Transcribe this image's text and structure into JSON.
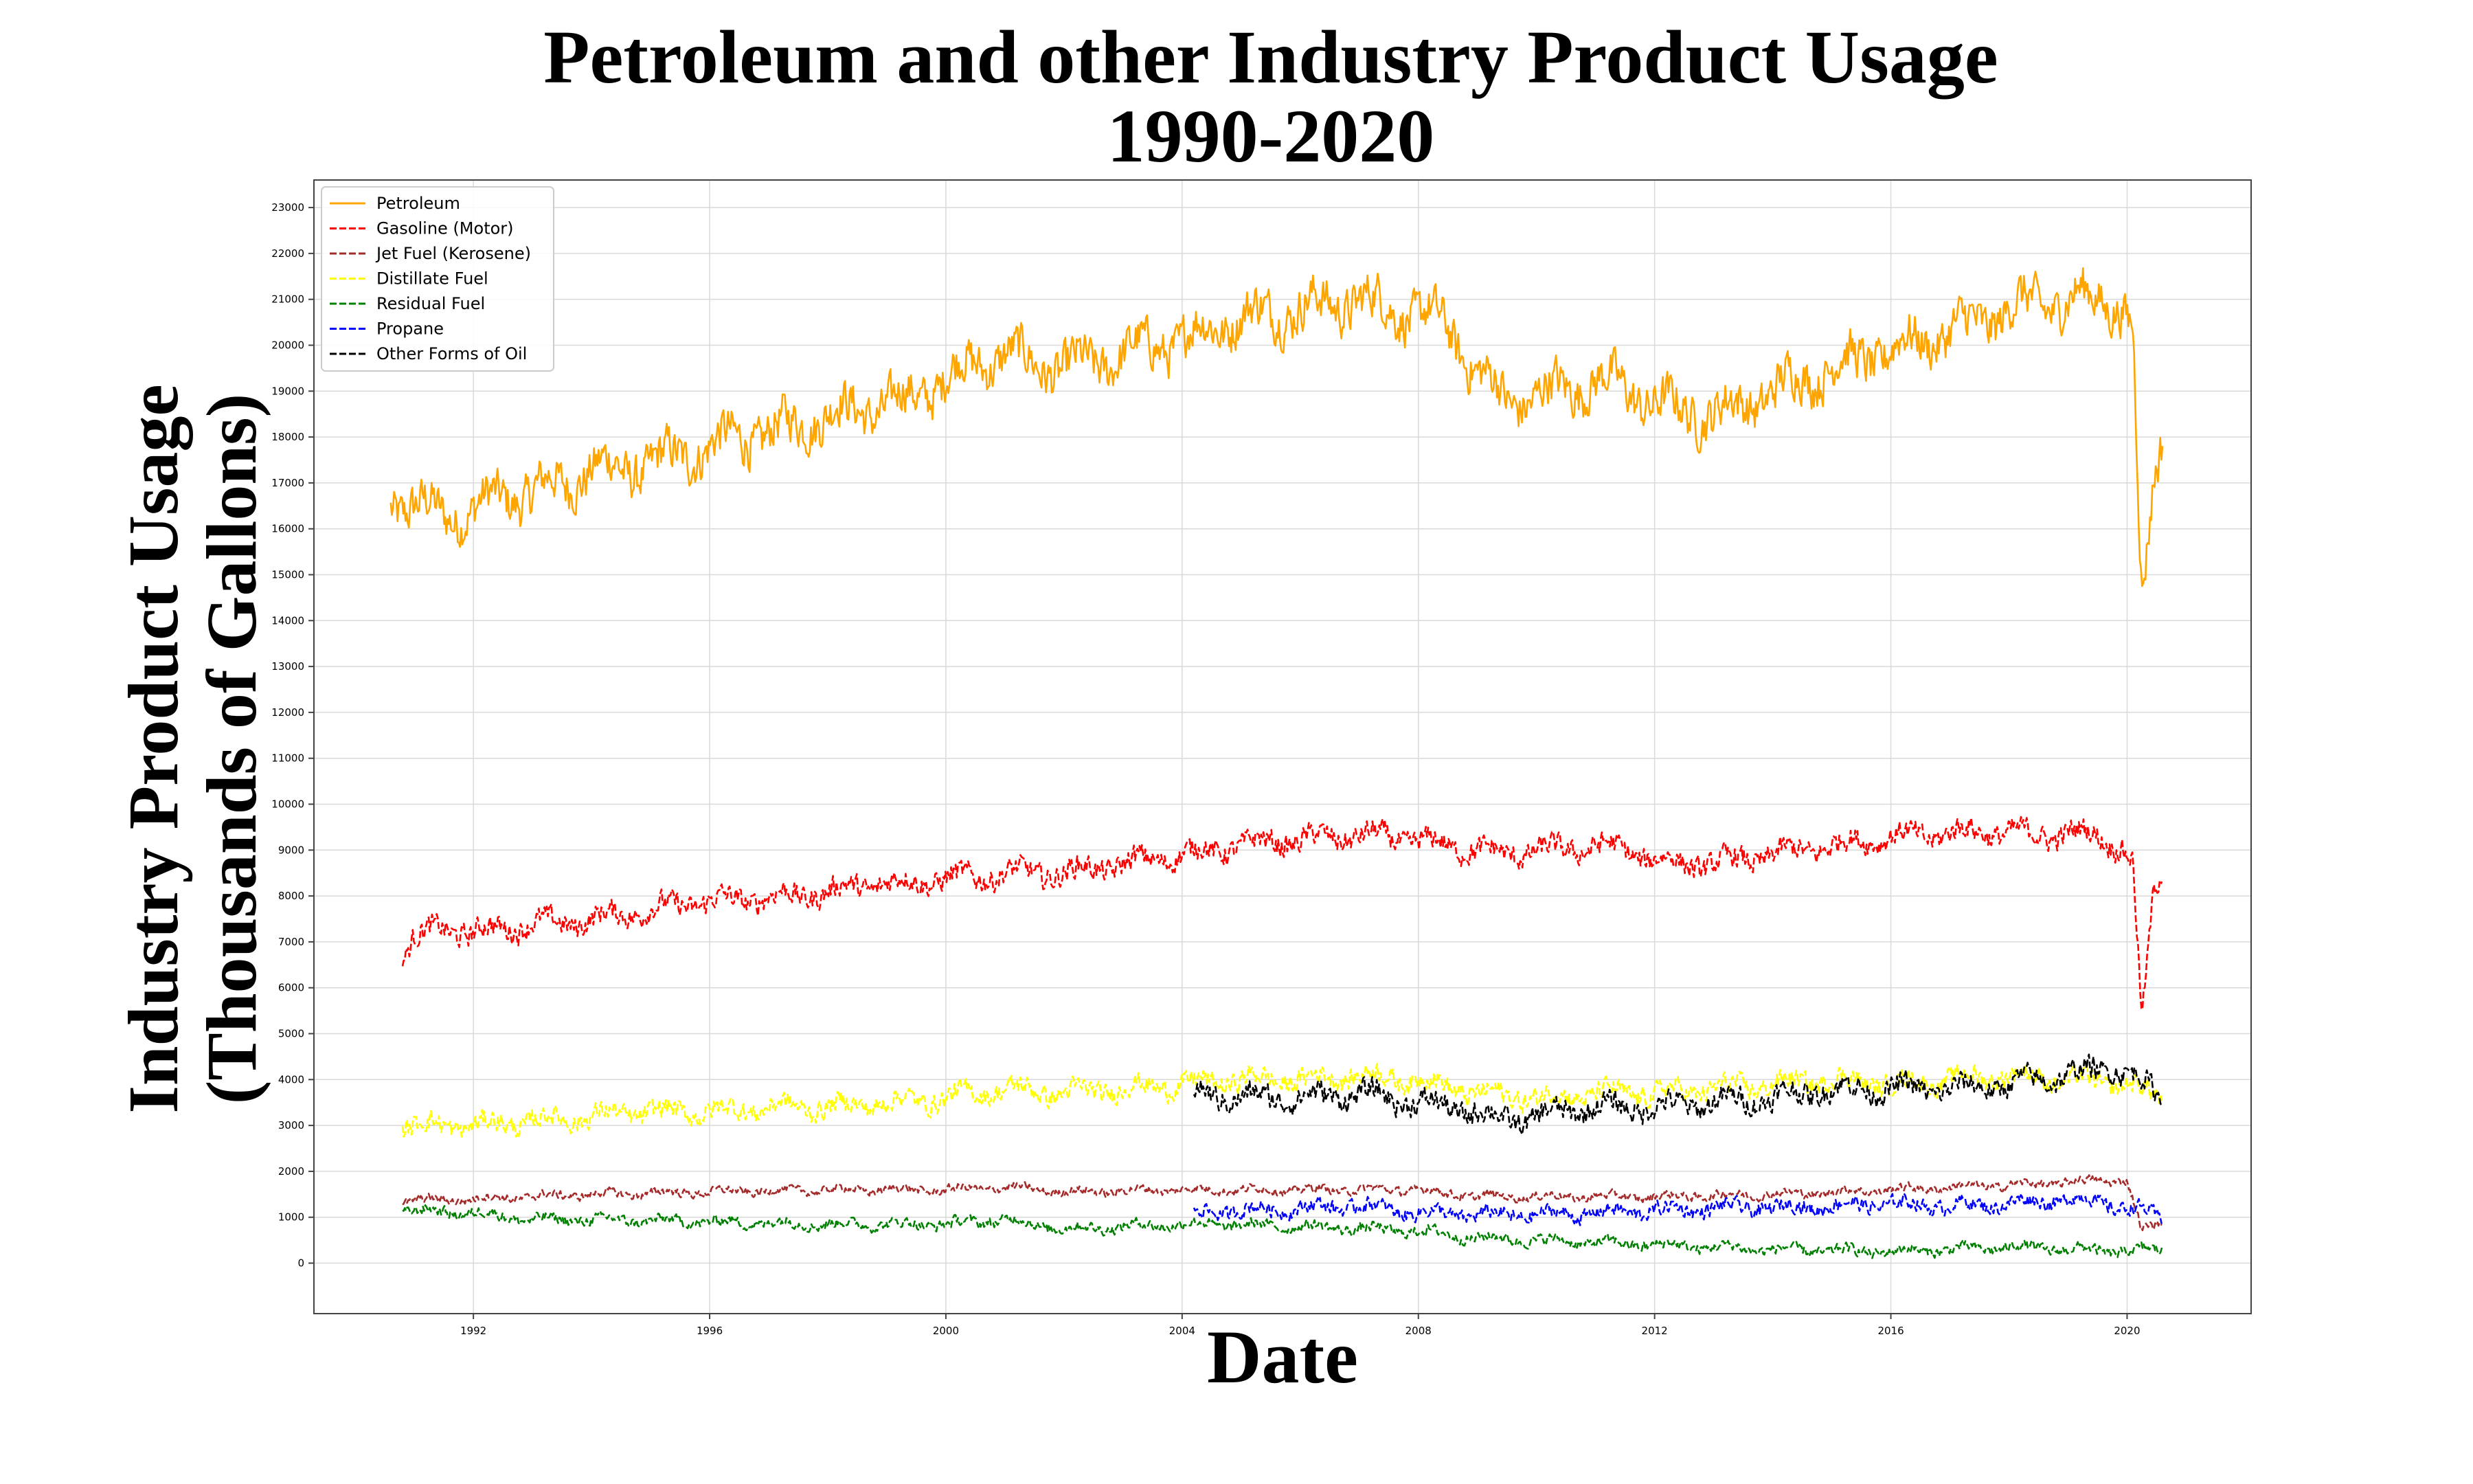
{
  "chart_data": {
    "type": "line",
    "title": "Petroleum and other Industry Product Usage",
    "subtitle": "1990-2020",
    "xlabel": "Date",
    "ylabel": "Industry Product Usage",
    "ylabel2": "(Thousands of Gallons)",
    "xlim": [
      1989.3,
      2022.1
    ],
    "ylim": [
      -1100,
      23600
    ],
    "x_ticks": [
      1992,
      1996,
      2000,
      2004,
      2008,
      2012,
      2016,
      2020
    ],
    "x_tick_labels": [
      "1992",
      "1996",
      "2000",
      "2004",
      "2008",
      "2012",
      "2016",
      "2020"
    ],
    "y_ticks": [
      0,
      1000,
      2000,
      3000,
      4000,
      5000,
      6000,
      7000,
      8000,
      9000,
      10000,
      11000,
      12000,
      13000,
      14000,
      15000,
      16000,
      17000,
      18000,
      19000,
      20000,
      21000,
      22000,
      23000
    ],
    "y_tick_labels": [
      "0",
      "1000",
      "2000",
      "3000",
      "4000",
      "5000",
      "6000",
      "7000",
      "8000",
      "9000",
      "10000",
      "11000",
      "12000",
      "13000",
      "14000",
      "15000",
      "16000",
      "17000",
      "18000",
      "19000",
      "20000",
      "21000",
      "22000",
      "23000"
    ],
    "grid": true,
    "legend_position": "top-left",
    "series": [
      {
        "name": "Petroleum",
        "color": "#FFA500",
        "dash": "solid",
        "noise": 1100,
        "x": [
          1990.6,
          1991.0,
          1991.5,
          1992.0,
          1992.5,
          1993.0,
          1993.5,
          1994.0,
          1994.5,
          1995.0,
          1995.5,
          1996.0,
          1996.5,
          1997.0,
          1997.5,
          1998.0,
          1998.5,
          1999.0,
          1999.5,
          2000.0,
          2000.5,
          2001.0,
          2001.5,
          2002.0,
          2002.5,
          2003.0,
          2003.5,
          2004.0,
          2004.5,
          2005.0,
          2005.5,
          2006.0,
          2006.5,
          2007.0,
          2007.5,
          2008.0,
          2008.5,
          2009.0,
          2009.5,
          2010.0,
          2010.5,
          2011.0,
          2011.5,
          2012.0,
          2012.5,
          2013.0,
          2013.5,
          2014.0,
          2014.5,
          2015.0,
          2015.5,
          2016.0,
          2016.5,
          2017.0,
          2017.5,
          2018.0,
          2018.5,
          2019.0,
          2019.5,
          2019.9,
          2020.1,
          2020.25,
          2020.35,
          2020.45,
          2020.6
        ],
        "y": [
          16600,
          16500,
          16300,
          16400,
          16700,
          16800,
          17000,
          17300,
          17300,
          17400,
          17600,
          17800,
          18000,
          18100,
          18300,
          18500,
          18600,
          18700,
          18900,
          19300,
          19600,
          19800,
          19600,
          19500,
          19600,
          19800,
          20000,
          20100,
          20400,
          20600,
          20700,
          20800,
          20900,
          21000,
          20800,
          20700,
          20400,
          19400,
          18800,
          18900,
          19100,
          19200,
          19100,
          18700,
          18600,
          18500,
          18700,
          19000,
          19300,
          19500,
          19700,
          19900,
          20100,
          20300,
          20500,
          20800,
          20900,
          21000,
          21000,
          20900,
          20300,
          14200,
          15500,
          17000,
          18000
        ]
      },
      {
        "name": "Gasoline (Motor)",
        "color": "#FF0000",
        "dash": "dashed",
        "noise": 550,
        "x": [
          1990.8,
          1991.0,
          1991.5,
          1992.0,
          1992.5,
          1993.0,
          1993.5,
          1994.0,
          1994.5,
          1995.0,
          1995.5,
          1996.0,
          1996.5,
          1997.0,
          1997.5,
          1998.0,
          1998.5,
          1999.0,
          1999.5,
          2000.0,
          2000.5,
          2001.0,
          2001.5,
          2002.0,
          2002.5,
          2003.0,
          2003.5,
          2004.0,
          2004.5,
          2005.0,
          2005.5,
          2006.0,
          2006.5,
          2007.0,
          2007.5,
          2008.0,
          2008.5,
          2009.0,
          2009.5,
          2010.0,
          2010.5,
          2011.0,
          2011.5,
          2012.0,
          2012.5,
          2013.0,
          2013.5,
          2014.0,
          2014.5,
          2015.0,
          2015.5,
          2016.0,
          2016.5,
          2017.0,
          2017.5,
          2018.0,
          2018.5,
          2019.0,
          2019.5,
          2019.9,
          2020.1,
          2020.25,
          2020.35,
          2020.45,
          2020.6
        ],
        "y": [
          6700,
          7100,
          7300,
          7200,
          7300,
          7400,
          7400,
          7500,
          7600,
          7700,
          7800,
          7900,
          7900,
          8000,
          8000,
          8100,
          8200,
          8300,
          8300,
          8400,
          8400,
          8500,
          8500,
          8500,
          8600,
          8700,
          8800,
          8900,
          9000,
          9100,
          9200,
          9200,
          9300,
          9300,
          9300,
          9200,
          9100,
          9000,
          8900,
          9000,
          9000,
          9100,
          9000,
          8800,
          8700,
          8700,
          8800,
          8900,
          9000,
          9100,
          9200,
          9300,
          9300,
          9400,
          9400,
          9400,
          9300,
          9400,
          9300,
          9100,
          8700,
          5200,
          6600,
          8100,
          8600
        ]
      },
      {
        "name": "Jet Fuel (Kerosene)",
        "color": "#A52A2A",
        "dash": "dashed",
        "noise": 200,
        "x": [
          1990.8,
          1992.0,
          1994.0,
          1996.0,
          1998.0,
          2000.0,
          2001.0,
          2002.0,
          2004.0,
          2006.0,
          2008.0,
          2009.0,
          2010.0,
          2012.0,
          2014.0,
          2016.0,
          2018.0,
          2019.5,
          2020.0,
          2020.25,
          2020.4,
          2020.6
        ],
        "y": [
          1350,
          1400,
          1500,
          1550,
          1600,
          1600,
          1650,
          1550,
          1600,
          1600,
          1600,
          1450,
          1450,
          1450,
          1500,
          1600,
          1700,
          1800,
          1800,
          700,
          800,
          900
        ]
      },
      {
        "name": "Distillate Fuel",
        "color": "#FFFF00",
        "dash": "dashed",
        "noise": 500,
        "x": [
          1990.8,
          1992.0,
          1993.0,
          1994.0,
          1995.0,
          1996.0,
          1997.0,
          1998.0,
          1999.0,
          2000.0,
          2001.0,
          2002.0,
          2003.0,
          2004.0,
          2005.0,
          2006.0,
          2007.0,
          2008.0,
          2009.0,
          2010.0,
          2011.0,
          2012.0,
          2013.0,
          2014.0,
          2015.0,
          2016.0,
          2017.0,
          2018.0,
          2019.0,
          2020.0,
          2020.6
        ],
        "y": [
          3000,
          3000,
          3100,
          3200,
          3300,
          3300,
          3400,
          3400,
          3500,
          3600,
          3800,
          3700,
          3800,
          3900,
          4000,
          4000,
          4100,
          4000,
          3700,
          3600,
          3700,
          3700,
          3800,
          3900,
          4000,
          3900,
          4000,
          4100,
          4000,
          3900,
          3600
        ]
      },
      {
        "name": "Residual Fuel",
        "color": "#008000",
        "dash": "dashed",
        "noise": 250,
        "x": [
          1990.8,
          1992.0,
          1993.0,
          1994.0,
          1996.0,
          1998.0,
          2000.0,
          2001.0,
          2002.0,
          2004.0,
          2006.0,
          2008.0,
          2009.0,
          2010.0,
          2012.0,
          2014.0,
          2016.0,
          2018.0,
          2019.0,
          2020.0,
          2020.6
        ],
        "y": [
          1150,
          1100,
          950,
          950,
          900,
          850,
          850,
          950,
          750,
          850,
          800,
          700,
          550,
          500,
          400,
          300,
          250,
          350,
          300,
          250,
          300
        ]
      },
      {
        "name": "Propane",
        "color": "#0000FF",
        "dash": "dashed",
        "noise": 350,
        "x": [
          2004.2,
          2005.0,
          2006.0,
          2007.0,
          2008.0,
          2009.0,
          2010.0,
          2011.0,
          2012.0,
          2013.0,
          2014.0,
          2015.0,
          2016.0,
          2017.0,
          2018.0,
          2019.0,
          2019.5,
          2020.0,
          2020.6
        ],
        "y": [
          1100,
          1150,
          1200,
          1250,
          1100,
          1050,
          1050,
          1100,
          1150,
          1200,
          1200,
          1250,
          1300,
          1250,
          1300,
          1400,
          1350,
          1200,
          1000
        ]
      },
      {
        "name": "Other Forms of Oil",
        "color": "#000000",
        "dash": "dashed",
        "noise": 550,
        "x": [
          2004.2,
          2005.0,
          2006.0,
          2007.0,
          2008.0,
          2009.0,
          2009.5,
          2010.0,
          2011.0,
          2012.0,
          2013.0,
          2014.0,
          2015.0,
          2016.0,
          2017.0,
          2018.0,
          2019.0,
          2019.8,
          2020.2,
          2020.6
        ],
        "y": [
          3700,
          3600,
          3600,
          3700,
          3500,
          3300,
          3100,
          3200,
          3400,
          3400,
          3500,
          3600,
          3800,
          3800,
          3800,
          3900,
          4100,
          4300,
          4000,
          3600
        ]
      }
    ]
  }
}
